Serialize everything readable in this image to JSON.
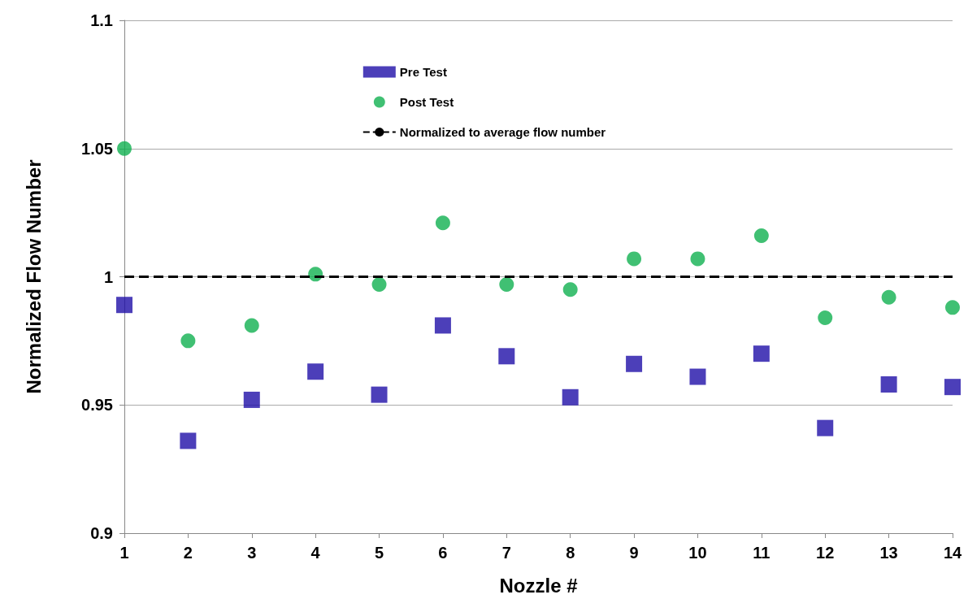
{
  "chart_data": {
    "type": "scatter",
    "xlabel": "Nozzle #",
    "ylabel": "Normalized Flow Number",
    "x": [
      1,
      2,
      3,
      4,
      5,
      6,
      7,
      8,
      9,
      10,
      11,
      12,
      13,
      14
    ],
    "series": [
      {
        "name": "Pre Test",
        "color": "#1f0fa8",
        "marker": "square",
        "values": [
          0.989,
          0.936,
          0.952,
          0.963,
          0.954,
          0.981,
          0.969,
          0.953,
          0.966,
          0.961,
          0.97,
          0.941,
          0.958,
          0.957
        ]
      },
      {
        "name": "Post Test",
        "color": "#10b050",
        "marker": "circle",
        "values": [
          1.05,
          0.975,
          0.981,
          1.001,
          0.997,
          1.021,
          0.997,
          0.995,
          1.007,
          1.007,
          1.016,
          0.984,
          0.992,
          0.988
        ]
      }
    ],
    "ref_lines": [
      {
        "axis": "y",
        "value": 1,
        "label": "Normalized to average flow number",
        "color": "#000000",
        "line_style": "dashed"
      }
    ],
    "xlim": [
      1,
      14
    ],
    "xticks": [
      1,
      2,
      3,
      4,
      5,
      6,
      7,
      8,
      9,
      10,
      11,
      12,
      13,
      14
    ],
    "ylim": [
      0.9,
      1.1
    ],
    "yticks": [
      0.9,
      0.95,
      1,
      1.05,
      1.1
    ],
    "grid": "y",
    "legend": "top"
  }
}
